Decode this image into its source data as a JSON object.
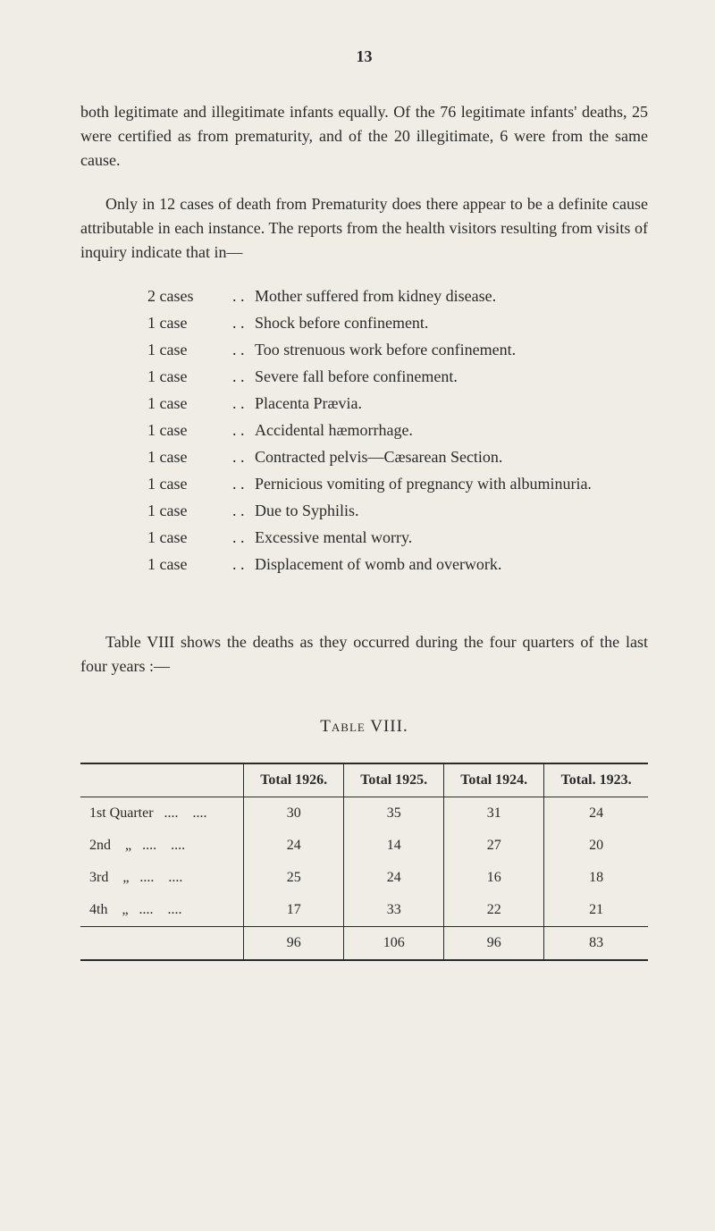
{
  "pageNumber": "13",
  "para1": "both legitimate and illegitimate infants equally. Of the 76 legitimate infants' deaths, 25 were certified as from prematurity, and of the 20 illegitimate, 6 were from the same cause.",
  "para2": "Only in 12 cases of death from Prematurity does there appear to be a definite cause attributable in each instance. The reports from the health visitors resulting from visits of inquiry indicate that in—",
  "cases": [
    {
      "count": "2 cases",
      "dots": ". .",
      "desc": "Mother suffered from kidney disease."
    },
    {
      "count": "1 case",
      "dots": ". .",
      "desc": "Shock before confinement."
    },
    {
      "count": "1 case",
      "dots": ". .",
      "desc": "Too strenuous work before confinement."
    },
    {
      "count": "1 case",
      "dots": ". .",
      "desc": "Severe fall before confinement."
    },
    {
      "count": "1 case",
      "dots": ". .",
      "desc": "Placenta Prævia."
    },
    {
      "count": "1 case",
      "dots": ". .",
      "desc": "Accidental hæmorrhage."
    },
    {
      "count": "1 case",
      "dots": ". .",
      "desc": "Contracted pelvis—Cæsarean Section."
    },
    {
      "count": "1 case",
      "dots": ". .",
      "desc": "Pernicious vomiting of pregnancy with albuminuria."
    },
    {
      "count": "1 case",
      "dots": ". .",
      "desc": "Due to Syphilis."
    },
    {
      "count": "1 case",
      "dots": ". .",
      "desc": "Excessive mental worry."
    },
    {
      "count": "1 case",
      "dots": ". .",
      "desc": "Displacement of womb and overwork."
    }
  ],
  "tableIntro": "Table VIII shows the deaths as they occurred during the four quarters of the last four years :—",
  "tableTitle": "Table VIII.",
  "table": {
    "headers": [
      "",
      "Total 1926.",
      "Total 1925.",
      "Total 1924.",
      "Total. 1923."
    ],
    "rows": [
      {
        "label": "1st Quarter",
        "dots": "....    ....",
        "values": [
          "30",
          "35",
          "31",
          "24"
        ]
      },
      {
        "label": "2nd    „",
        "dots": "....    ....",
        "values": [
          "24",
          "14",
          "27",
          "20"
        ]
      },
      {
        "label": "3rd    „",
        "dots": "....    ....",
        "values": [
          "25",
          "24",
          "16",
          "18"
        ]
      },
      {
        "label": "4th    „",
        "dots": "....    ....",
        "values": [
          "17",
          "33",
          "22",
          "21"
        ]
      }
    ],
    "totals": [
      "96",
      "106",
      "96",
      "83"
    ]
  }
}
